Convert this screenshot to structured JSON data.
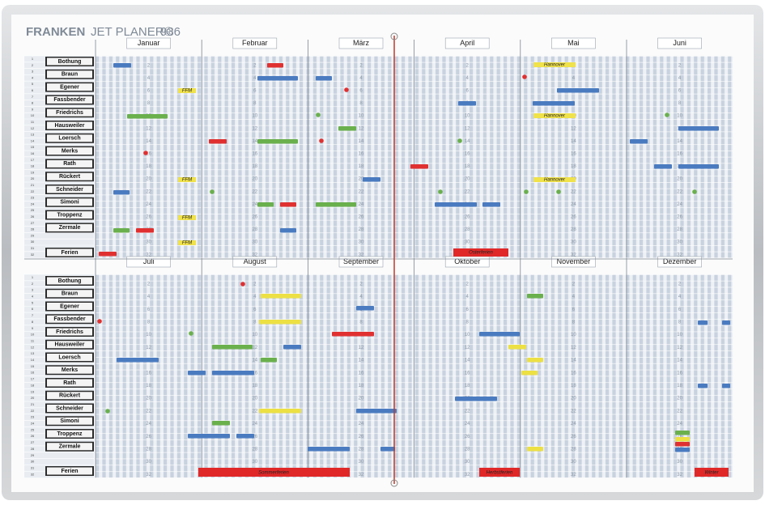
{
  "header": {
    "brand": "FRANKEN",
    "product": "JET PLANER®",
    "model": "936"
  },
  "top": {
    "months": [
      "Januar",
      "Februar",
      "März",
      "April",
      "Mai",
      "Juni"
    ],
    "names": [
      "Bothung",
      "Braun",
      "Egener",
      "Fassbender",
      "Friedrichs",
      "Hausweiler",
      "Loersch",
      "Merks",
      "Rath",
      "Rückert",
      "Schneider",
      "Simoni",
      "Troppenz",
      "Zermale"
    ],
    "holiday_label": "Ferien"
  },
  "bottom": {
    "months": [
      "Juli",
      "August",
      "September",
      "Oktober",
      "November",
      "Dezember"
    ],
    "names": [
      "Bothung",
      "Braun",
      "Egener",
      "Fassbender",
      "Friedrichs",
      "Hausweiler",
      "Loersch",
      "Merks",
      "Rath",
      "Rückert",
      "Schneider",
      "Simoni",
      "Troppenz",
      "Zermale"
    ],
    "holiday_label": "Ferien"
  },
  "row_numbers": [
    1,
    2,
    3,
    4,
    5,
    6,
    7,
    8,
    9,
    10,
    11,
    12,
    13,
    14,
    15,
    16,
    17,
    18,
    19,
    20,
    21,
    22,
    23,
    24,
    25,
    26,
    27,
    28,
    29,
    30,
    31,
    32
  ],
  "day_numbers": [
    2,
    4,
    6,
    8,
    10,
    12,
    14,
    16,
    18,
    20,
    22,
    24,
    26,
    28,
    30,
    32
  ],
  "notes": [
    "Osterferien",
    "Sommerferien",
    "Herbstferien",
    "Winter",
    "Hannover",
    "Hannover",
    "Hannover",
    "FFM",
    "FFM",
    "FFM",
    "FFM"
  ]
}
